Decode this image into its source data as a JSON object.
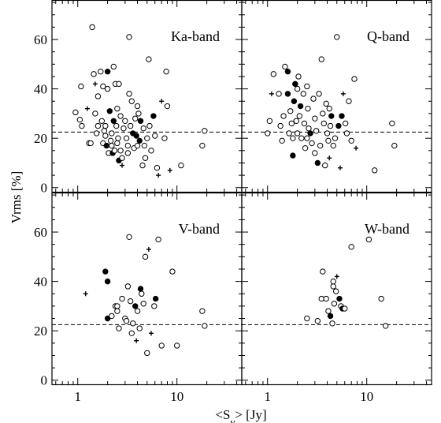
{
  "chart_data": {
    "type": "scatter",
    "layout": "2x2 panels, shared axes",
    "xlabel": "<S_ν> [Jy]",
    "ylabel": "Vrms [%]",
    "x_scale": "log",
    "xlim": [
      0.55,
      45
    ],
    "ylim": [
      -2,
      76
    ],
    "x_ticks": [
      1,
      10
    ],
    "x_tick_labels": [
      "1",
      "10"
    ],
    "y_ticks": [
      0,
      20,
      40,
      60
    ],
    "y_tick_labels": [
      "0",
      "20",
      "40",
      "60"
    ],
    "reference_line": {
      "y": 22.5,
      "style": "dashed"
    },
    "marker_types": {
      "o": "open circle",
      "f": "filled circle",
      "p": "plus"
    },
    "panels": [
      {
        "label": "Ka-band",
        "points": [
          [
            0.95,
            30.5,
            "o"
          ],
          [
            1.05,
            27.5,
            "o"
          ],
          [
            1.1,
            25,
            "o"
          ],
          [
            1.08,
            41,
            "o"
          ],
          [
            1.25,
            32,
            "p"
          ],
          [
            1.3,
            18,
            "o"
          ],
          [
            1.35,
            18,
            "o"
          ],
          [
            1.4,
            65,
            "o"
          ],
          [
            1.45,
            46,
            "o"
          ],
          [
            1.5,
            42,
            "p"
          ],
          [
            1.5,
            30,
            "o"
          ],
          [
            1.55,
            22,
            "o"
          ],
          [
            1.6,
            25,
            "o"
          ],
          [
            1.6,
            37,
            "o"
          ],
          [
            1.7,
            47,
            "o"
          ],
          [
            1.75,
            27,
            "o"
          ],
          [
            1.8,
            41,
            "o"
          ],
          [
            1.8,
            18,
            "o"
          ],
          [
            1.85,
            23,
            "o"
          ],
          [
            1.9,
            25,
            "o"
          ],
          [
            1.9,
            21,
            "o"
          ],
          [
            1.95,
            17,
            "f"
          ],
          [
            2.0,
            47,
            "f"
          ],
          [
            2.0,
            40,
            "o"
          ],
          [
            2.05,
            14,
            "o"
          ],
          [
            2.1,
            31,
            "f"
          ],
          [
            2.15,
            19,
            "o"
          ],
          [
            2.2,
            22,
            "o"
          ],
          [
            2.25,
            14,
            "f"
          ],
          [
            2.3,
            49,
            "o"
          ],
          [
            2.3,
            27,
            "f"
          ],
          [
            2.35,
            15,
            "o"
          ],
          [
            2.4,
            42,
            "o"
          ],
          [
            2.45,
            25,
            "o"
          ],
          [
            2.5,
            18,
            "o"
          ],
          [
            2.5,
            32,
            "o"
          ],
          [
            2.55,
            20,
            "o"
          ],
          [
            2.6,
            42,
            "o"
          ],
          [
            2.6,
            11,
            "f"
          ],
          [
            2.7,
            29,
            "o"
          ],
          [
            2.8,
            12,
            "o"
          ],
          [
            2.8,
            9,
            "p"
          ],
          [
            2.9,
            24,
            "o"
          ],
          [
            3.0,
            27,
            "o"
          ],
          [
            3.1,
            20,
            "o"
          ],
          [
            3.2,
            17,
            "o"
          ],
          [
            3.3,
            38,
            "o"
          ],
          [
            3.3,
            61,
            "o"
          ],
          [
            3.4,
            25,
            "o"
          ],
          [
            3.5,
            35,
            "o"
          ],
          [
            3.6,
            22,
            "f"
          ],
          [
            3.7,
            16,
            "o"
          ],
          [
            3.8,
            28,
            "o"
          ],
          [
            3.9,
            21,
            "f"
          ],
          [
            4.0,
            33,
            "o"
          ],
          [
            4.0,
            17,
            "o"
          ],
          [
            4.1,
            30,
            "o"
          ],
          [
            4.2,
            19,
            "f"
          ],
          [
            4.3,
            27,
            "f"
          ],
          [
            4.5,
            9,
            "o"
          ],
          [
            4.6,
            24,
            "o"
          ],
          [
            4.7,
            17,
            "o"
          ],
          [
            5.0,
            20,
            "o"
          ],
          [
            5.2,
            52,
            "o"
          ],
          [
            5.3,
            25,
            "o"
          ],
          [
            5.5,
            15,
            "o"
          ],
          [
            5.8,
            29,
            "f"
          ],
          [
            6.0,
            21,
            "o"
          ],
          [
            6.3,
            8,
            "o"
          ],
          [
            6.5,
            5,
            "p"
          ],
          [
            7.0,
            35,
            "p"
          ],
          [
            7.5,
            20,
            "o"
          ],
          [
            7.8,
            47,
            "o"
          ],
          [
            8.0,
            33,
            "o"
          ],
          [
            8.5,
            7,
            "p"
          ],
          [
            11.0,
            9,
            "o"
          ],
          [
            18.0,
            17,
            "o"
          ],
          [
            19.0,
            23,
            "o"
          ],
          [
            4.8,
            12,
            "o"
          ],
          [
            3.2,
            14,
            "o"
          ],
          [
            2.2,
            17,
            "o"
          ],
          [
            2.7,
            15,
            "o"
          ]
        ]
      },
      {
        "label": "Q-band",
        "points": [
          [
            1.0,
            22,
            "o"
          ],
          [
            1.05,
            27,
            "o"
          ],
          [
            1.1,
            38,
            "p"
          ],
          [
            1.15,
            46,
            "o"
          ],
          [
            1.3,
            38,
            "o"
          ],
          [
            1.35,
            25,
            "o"
          ],
          [
            1.4,
            19,
            "o"
          ],
          [
            1.45,
            29,
            "o"
          ],
          [
            1.5,
            49,
            "o"
          ],
          [
            1.6,
            38,
            "f"
          ],
          [
            1.6,
            47,
            "f"
          ],
          [
            1.65,
            22,
            "o"
          ],
          [
            1.7,
            31,
            "o"
          ],
          [
            1.75,
            26,
            "o"
          ],
          [
            1.8,
            13,
            "f"
          ],
          [
            1.85,
            35,
            "f"
          ],
          [
            1.9,
            42,
            "f"
          ],
          [
            1.95,
            27,
            "o"
          ],
          [
            2.0,
            22,
            "o"
          ],
          [
            2.05,
            45,
            "o"
          ],
          [
            2.1,
            29,
            "o"
          ],
          [
            2.15,
            33,
            "f"
          ],
          [
            2.2,
            20,
            "o"
          ],
          [
            2.3,
            38,
            "o"
          ],
          [
            2.35,
            26,
            "o"
          ],
          [
            2.4,
            16,
            "o"
          ],
          [
            2.5,
            41,
            "o"
          ],
          [
            2.55,
            32,
            "o"
          ],
          [
            2.6,
            24,
            "o"
          ],
          [
            2.7,
            22,
            "f"
          ],
          [
            2.8,
            18,
            "o"
          ],
          [
            2.9,
            36,
            "o"
          ],
          [
            3.0,
            28,
            "o"
          ],
          [
            3.1,
            23,
            "o"
          ],
          [
            3.2,
            10,
            "f"
          ],
          [
            3.3,
            38,
            "o"
          ],
          [
            3.4,
            17,
            "o"
          ],
          [
            3.5,
            52,
            "o"
          ],
          [
            3.6,
            30,
            "o"
          ],
          [
            3.7,
            26,
            "o"
          ],
          [
            3.8,
            9,
            "o"
          ],
          [
            3.9,
            34,
            "o"
          ],
          [
            4.0,
            22,
            "o"
          ],
          [
            4.1,
            19,
            "o"
          ],
          [
            4.2,
            12,
            "p"
          ],
          [
            4.3,
            25,
            "o"
          ],
          [
            4.4,
            29,
            "f"
          ],
          [
            4.6,
            17,
            "o"
          ],
          [
            4.8,
            20,
            "o"
          ],
          [
            5.0,
            61,
            "o"
          ],
          [
            5.2,
            25,
            "f"
          ],
          [
            5.4,
            8,
            "p"
          ],
          [
            5.6,
            29,
            "f"
          ],
          [
            5.8,
            38,
            "p"
          ],
          [
            6.1,
            26,
            "o"
          ],
          [
            6.3,
            22,
            "o"
          ],
          [
            6.6,
            35,
            "o"
          ],
          [
            7.0,
            19,
            "o"
          ],
          [
            7.5,
            44,
            "o"
          ],
          [
            7.8,
            16,
            "p"
          ],
          [
            12.0,
            7,
            "o"
          ],
          [
            18.0,
            26,
            "o"
          ],
          [
            19.0,
            17,
            "o"
          ],
          [
            4.2,
            32,
            "o"
          ],
          [
            2.0,
            40,
            "o"
          ],
          [
            3.0,
            14,
            "o"
          ],
          [
            2.5,
            20,
            "o"
          ],
          [
            1.8,
            20,
            "o"
          ]
        ]
      },
      {
        "label": "V-band",
        "points": [
          [
            1.2,
            35,
            "p"
          ],
          [
            1.9,
            44,
            "f"
          ],
          [
            2.0,
            40,
            "f"
          ],
          [
            2.0,
            25,
            "f"
          ],
          [
            2.2,
            26,
            "o"
          ],
          [
            2.4,
            30,
            "o"
          ],
          [
            2.5,
            28,
            "o"
          ],
          [
            2.6,
            21,
            "o"
          ],
          [
            2.8,
            33,
            "o"
          ],
          [
            3.0,
            25,
            "o"
          ],
          [
            3.2,
            38,
            "o"
          ],
          [
            3.3,
            58,
            "o"
          ],
          [
            3.4,
            32,
            "o"
          ],
          [
            3.5,
            19,
            "o"
          ],
          [
            3.6,
            23,
            "o"
          ],
          [
            3.8,
            30,
            "f"
          ],
          [
            3.9,
            16,
            "p"
          ],
          [
            4.0,
            28,
            "o"
          ],
          [
            4.2,
            21,
            "o"
          ],
          [
            4.3,
            37,
            "f"
          ],
          [
            4.4,
            35,
            "o"
          ],
          [
            4.6,
            31,
            "o"
          ],
          [
            4.8,
            50,
            "o"
          ],
          [
            5.0,
            11,
            "o"
          ],
          [
            5.2,
            53,
            "p"
          ],
          [
            5.5,
            19,
            "p"
          ],
          [
            5.9,
            30,
            "o"
          ],
          [
            6.1,
            33,
            "f"
          ],
          [
            6.5,
            57,
            "o"
          ],
          [
            7.0,
            14,
            "o"
          ],
          [
            9.0,
            44,
            "o"
          ],
          [
            10.0,
            14,
            "o"
          ],
          [
            18.0,
            28,
            "o"
          ],
          [
            19.0,
            22,
            "o"
          ],
          [
            3.1,
            24,
            "o"
          ],
          [
            2.5,
            30,
            "o"
          ]
        ]
      },
      {
        "label": "W-band",
        "points": [
          [
            2.5,
            25,
            "o"
          ],
          [
            3.2,
            24,
            "o"
          ],
          [
            3.5,
            33,
            "o"
          ],
          [
            3.6,
            44,
            "o"
          ],
          [
            3.9,
            33,
            "o"
          ],
          [
            4.1,
            28,
            "o"
          ],
          [
            4.3,
            26,
            "f"
          ],
          [
            4.5,
            23,
            "o"
          ],
          [
            4.6,
            38,
            "o"
          ],
          [
            4.7,
            31,
            "o"
          ],
          [
            4.9,
            36,
            "o"
          ],
          [
            5.0,
            42,
            "p"
          ],
          [
            5.3,
            33,
            "f"
          ],
          [
            5.5,
            30,
            "o"
          ],
          [
            5.7,
            29,
            "f"
          ],
          [
            6.0,
            29,
            "o"
          ],
          [
            7.0,
            54,
            "o"
          ],
          [
            10.5,
            57,
            "o"
          ],
          [
            14.0,
            33,
            "o"
          ],
          [
            15.5,
            22,
            "o"
          ],
          [
            4.6,
            40,
            "o"
          ]
        ]
      }
    ]
  }
}
